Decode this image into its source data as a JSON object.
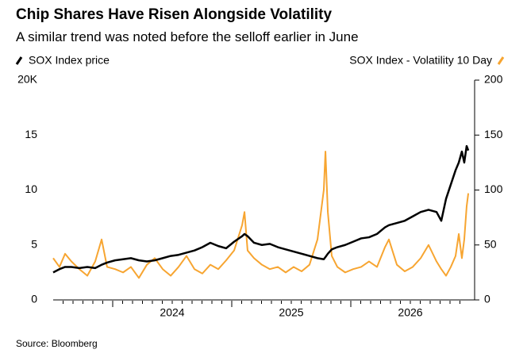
{
  "chart_data": {
    "type": "line",
    "title": "Chip Shares Have Risen Alongside Volatility",
    "subtitle": "A similar trend was noted before the selloff earlier in June",
    "source": "Source: Bloomberg",
    "x": [
      2023.5,
      2023.553,
      2023.6,
      2023.653,
      2023.72,
      2023.787,
      2023.853,
      2023.907,
      2023.953,
      2024.02,
      2024.087,
      2024.153,
      2024.22,
      2024.287,
      2024.353,
      2024.42,
      2024.487,
      2024.553,
      2024.62,
      2024.687,
      2024.753,
      2024.82,
      2024.887,
      2024.953,
      2025.02,
      2025.087,
      2025.107,
      2025.133,
      2025.187,
      2025.253,
      2025.32,
      2025.387,
      2025.453,
      2025.52,
      2025.587,
      2025.653,
      2025.72,
      2025.773,
      2025.787,
      2025.807,
      2025.84,
      2025.887,
      2025.953,
      2026.02,
      2026.087,
      2026.153,
      2026.22,
      2026.287,
      2026.32,
      2026.387,
      2026.453,
      2026.52,
      2026.587,
      2026.653,
      2026.72,
      2026.76,
      2026.8,
      2026.84,
      2026.88,
      2026.907,
      2026.933,
      2026.953,
      2026.973,
      2026.987
    ],
    "series": [
      {
        "name": "SOX Index price",
        "color": "#000000",
        "axis": "y",
        "values": [
          2.5,
          2.8,
          3.0,
          3.0,
          2.9,
          3.0,
          2.9,
          3.2,
          3.4,
          3.6,
          3.7,
          3.8,
          3.6,
          3.5,
          3.6,
          3.8,
          4.0,
          4.1,
          4.3,
          4.5,
          4.8,
          5.2,
          4.9,
          4.7,
          5.3,
          5.8,
          6.0,
          5.8,
          5.2,
          5.0,
          5.1,
          4.8,
          4.6,
          4.4,
          4.2,
          4.0,
          3.8,
          3.7,
          3.9,
          4.2,
          4.6,
          4.8,
          5.0,
          5.3,
          5.6,
          5.7,
          6.0,
          6.6,
          6.8,
          7.0,
          7.2,
          7.6,
          8.0,
          8.2,
          8.0,
          7.2,
          9.2,
          10.5,
          11.8,
          12.5,
          13.5,
          12.5,
          14.0,
          13.6
        ]
      },
      {
        "name": "SOX Index - Volatility 10 Day",
        "color": "#f7a531",
        "axis": "y2",
        "values": [
          38,
          30,
          42,
          35,
          28,
          22,
          35,
          55,
          30,
          28,
          25,
          30,
          20,
          32,
          38,
          28,
          22,
          30,
          40,
          28,
          24,
          32,
          28,
          36,
          45,
          68,
          80,
          45,
          38,
          32,
          28,
          30,
          25,
          30,
          26,
          32,
          55,
          100,
          135,
          80,
          40,
          30,
          25,
          28,
          30,
          35,
          30,
          48,
          55,
          32,
          26,
          30,
          38,
          50,
          35,
          28,
          22,
          30,
          40,
          60,
          38,
          55,
          85,
          97
        ]
      }
    ],
    "xlim": [
      2023.5,
      2027
    ],
    "xticks": [
      2024,
      2025,
      2026
    ],
    "ylim": [
      0,
      20
    ],
    "yticks": [
      0,
      5,
      10,
      15,
      {
        "value": 20,
        "label": "20K"
      }
    ],
    "y2lim": [
      0,
      200
    ],
    "y2ticks": [
      0,
      50,
      100,
      150,
      200
    ]
  }
}
